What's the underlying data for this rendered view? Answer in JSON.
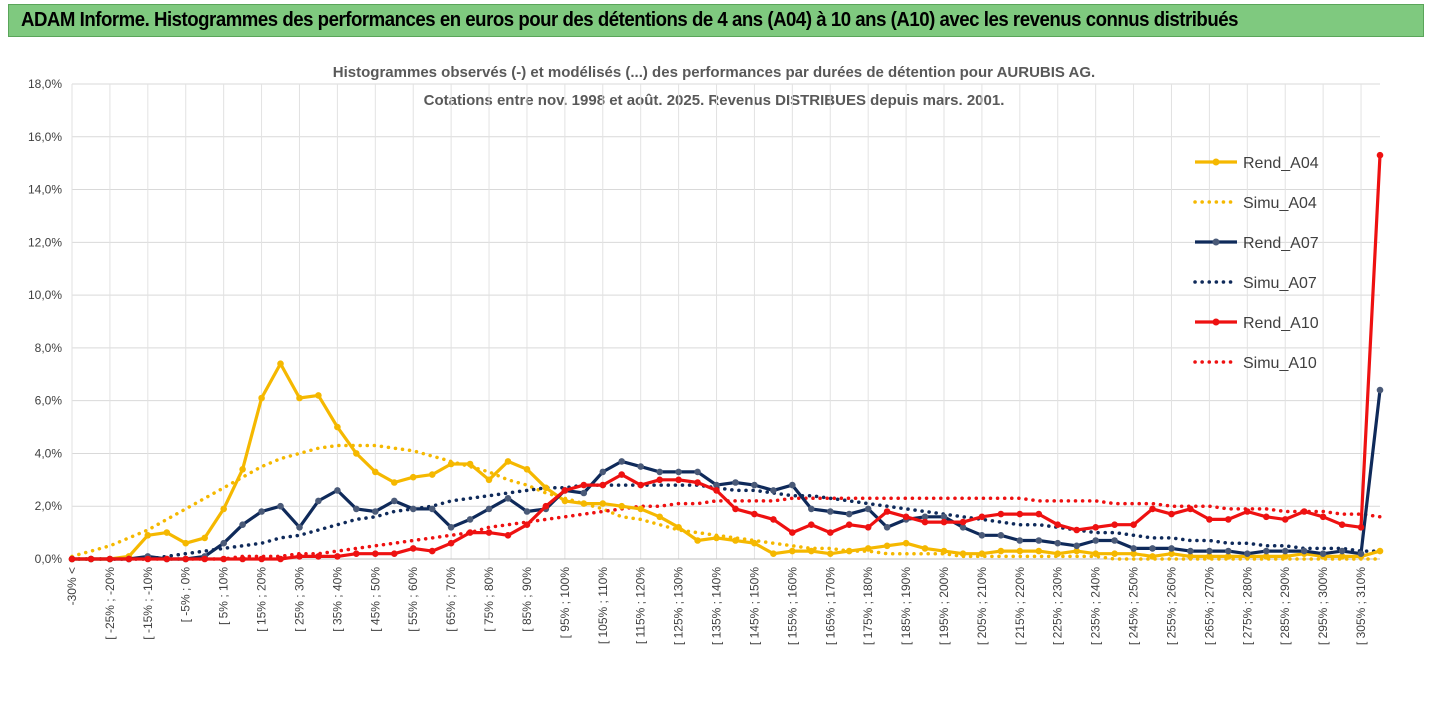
{
  "banner_title": "ADAM Informe. Histogrammes des performances en euros pour des détentions de 4 ans (A04) à 10 ans (A10) avec les revenus connus distribués",
  "colors": {
    "A04": "#f5b800",
    "A07": "#0f2a5a",
    "A10": "#ee1111",
    "banner": "#7fc97f",
    "grid": "#d9d9d9"
  },
  "chart_data": {
    "type": "line",
    "title": "Histogrammes observés (-) et modélisés (...) des performances par durées de détention pour AURUBIS AG.",
    "subtitle": "Cotations entre nov. 1998 et août. 2025. Revenus DISTRIBUES depuis mars. 2001.",
    "xlabel": "",
    "ylabel": "",
    "ylim": [
      0,
      18
    ],
    "y_ticks": [
      "0,0%",
      "2,0%",
      "4,0%",
      "6,0%",
      "8,0%",
      "10,0%",
      "12,0%",
      "14,0%",
      "16,0%",
      "18,0%"
    ],
    "grid": true,
    "legend_position": "right",
    "x_labels": [
      "-30% <",
      "[ -25% ; -20%",
      "[ -15% ; -10%",
      "[ -5% ; 0%",
      "[ 5% ; 10%",
      "[ 15% ; 20%",
      "[ 25% ; 30%",
      "[ 35% ; 40%",
      "[ 45% ; 50%",
      "[ 55% ; 60%",
      "[ 65% ; 70%",
      "[ 75% ; 80%",
      "[ 85% ; 90%",
      "[ 95% ; 100%",
      "[ 105% ; 110%",
      "[ 115% ; 120%",
      "[ 125% ; 130%",
      "[ 135% ; 140%",
      "[ 145% ; 150%",
      "[ 155% ; 160%",
      "[ 165% ; 170%",
      "[ 175% ; 180%",
      "[ 185% ; 190%",
      "[ 195% ; 200%",
      "[ 205% ; 210%",
      "[ 215% ; 220%",
      "[ 225% ; 230%",
      "[ 235% ; 240%",
      "[ 245% ; 250%",
      "[ 255% ; 260%",
      "[ 265% ; 270%",
      "[ 275% ; 280%",
      "[ 285% ; 290%",
      "[ 295% ; 300%",
      "[ 305% ; 310%"
    ],
    "series": [
      {
        "name": "Rend_A04",
        "style": "solid",
        "color": "#f5b800",
        "values": [
          0,
          0,
          0,
          0.1,
          0.9,
          1.0,
          0.6,
          0.8,
          1.9,
          3.4,
          6.1,
          7.4,
          6.1,
          6.2,
          5.0,
          4.0,
          3.3,
          2.9,
          3.1,
          3.2,
          3.6,
          3.6,
          3.0,
          3.7,
          3.4,
          2.7,
          2.2,
          2.1,
          2.1,
          2.0,
          1.9,
          1.6,
          1.2,
          0.7,
          0.8,
          0.7,
          0.6,
          0.2,
          0.3,
          0.3,
          0.2,
          0.3,
          0.4,
          0.5,
          0.6,
          0.4,
          0.3,
          0.2,
          0.2,
          0.3,
          0.3,
          0.3,
          0.2,
          0.3,
          0.2,
          0.2,
          0.2,
          0.1,
          0.2,
          0.1,
          0.1,
          0.1,
          0.1,
          0.1,
          0.1,
          0.2,
          0.1,
          0.1,
          0.1,
          0.3
        ]
      },
      {
        "name": "Simu_A04",
        "style": "dotted",
        "color": "#f5b800",
        "values": [
          0.1,
          0.3,
          0.5,
          0.8,
          1.1,
          1.5,
          1.9,
          2.3,
          2.7,
          3.1,
          3.5,
          3.8,
          4.0,
          4.2,
          4.3,
          4.3,
          4.3,
          4.2,
          4.1,
          3.9,
          3.7,
          3.5,
          3.3,
          3.0,
          2.8,
          2.5,
          2.3,
          2.1,
          1.9,
          1.6,
          1.5,
          1.3,
          1.1,
          1.0,
          0.9,
          0.8,
          0.7,
          0.6,
          0.5,
          0.4,
          0.4,
          0.3,
          0.3,
          0.2,
          0.2,
          0.2,
          0.2,
          0.1,
          0.1,
          0.1,
          0.1,
          0.1,
          0.1,
          0.1,
          0.1,
          0,
          0,
          0,
          0,
          0,
          0,
          0,
          0,
          0,
          0,
          0,
          0,
          0,
          0,
          0
        ]
      },
      {
        "name": "Rend_A07",
        "style": "solid",
        "color": "#0f2a5a",
        "values": [
          0,
          0,
          0,
          0,
          0.1,
          0,
          0,
          0.1,
          0.6,
          1.3,
          1.8,
          2.0,
          1.2,
          2.2,
          2.6,
          1.9,
          1.8,
          2.2,
          1.9,
          1.9,
          1.2,
          1.5,
          1.9,
          2.3,
          1.8,
          1.9,
          2.6,
          2.5,
          3.3,
          3.7,
          3.5,
          3.3,
          3.3,
          3.3,
          2.8,
          2.9,
          2.8,
          2.6,
          2.8,
          1.9,
          1.8,
          1.7,
          1.9,
          1.2,
          1.5,
          1.6,
          1.6,
          1.2,
          0.9,
          0.9,
          0.7,
          0.7,
          0.6,
          0.5,
          0.7,
          0.7,
          0.4,
          0.4,
          0.4,
          0.3,
          0.3,
          0.3,
          0.2,
          0.3,
          0.3,
          0.3,
          0.2,
          0.3,
          0.2,
          6.4
        ]
      },
      {
        "name": "Simu_A07",
        "style": "dotted",
        "color": "#0f2a5a",
        "values": [
          0,
          0,
          0,
          0,
          0,
          0.1,
          0.2,
          0.3,
          0.4,
          0.5,
          0.6,
          0.8,
          0.9,
          1.1,
          1.3,
          1.5,
          1.6,
          1.8,
          1.9,
          2.0,
          2.2,
          2.3,
          2.4,
          2.5,
          2.6,
          2.7,
          2.7,
          2.8,
          2.8,
          2.8,
          2.8,
          2.8,
          2.8,
          2.8,
          2.7,
          2.6,
          2.6,
          2.5,
          2.4,
          2.4,
          2.3,
          2.2,
          2.1,
          2.0,
          1.9,
          1.8,
          1.7,
          1.6,
          1.5,
          1.4,
          1.3,
          1.3,
          1.2,
          1.1,
          1.0,
          1.0,
          0.9,
          0.8,
          0.8,
          0.7,
          0.7,
          0.6,
          0.6,
          0.5,
          0.5,
          0.4,
          0.4,
          0.4,
          0.3,
          0.3
        ]
      },
      {
        "name": "Rend_A10",
        "style": "solid",
        "color": "#ee1111",
        "values": [
          0,
          0,
          0,
          0,
          0,
          0,
          0,
          0,
          0,
          0,
          0,
          0,
          0.1,
          0.1,
          0.1,
          0.2,
          0.2,
          0.2,
          0.4,
          0.3,
          0.6,
          1.0,
          1.0,
          0.9,
          1.3,
          2.0,
          2.6,
          2.8,
          2.8,
          3.2,
          2.8,
          3.0,
          3.0,
          2.9,
          2.6,
          1.9,
          1.7,
          1.5,
          1.0,
          1.3,
          1.0,
          1.3,
          1.2,
          1.8,
          1.6,
          1.4,
          1.4,
          1.4,
          1.6,
          1.7,
          1.7,
          1.7,
          1.3,
          1.1,
          1.2,
          1.3,
          1.3,
          1.9,
          1.7,
          1.9,
          1.5,
          1.5,
          1.8,
          1.6,
          1.5,
          1.8,
          1.6,
          1.3,
          1.2,
          15.3
        ]
      },
      {
        "name": "Simu_A10",
        "style": "dotted",
        "color": "#ee1111",
        "values": [
          0,
          0,
          0,
          0,
          0,
          0,
          0,
          0,
          0,
          0.1,
          0.1,
          0.1,
          0.2,
          0.2,
          0.3,
          0.4,
          0.5,
          0.6,
          0.7,
          0.8,
          0.9,
          1.0,
          1.2,
          1.3,
          1.4,
          1.5,
          1.6,
          1.7,
          1.8,
          1.9,
          2.0,
          2.0,
          2.1,
          2.1,
          2.2,
          2.2,
          2.2,
          2.2,
          2.3,
          2.3,
          2.3,
          2.3,
          2.3,
          2.3,
          2.3,
          2.3,
          2.3,
          2.3,
          2.3,
          2.3,
          2.3,
          2.2,
          2.2,
          2.2,
          2.2,
          2.1,
          2.1,
          2.1,
          2.0,
          2.0,
          2.0,
          1.9,
          1.9,
          1.9,
          1.8,
          1.8,
          1.8,
          1.7,
          1.7,
          1.6
        ]
      }
    ]
  }
}
